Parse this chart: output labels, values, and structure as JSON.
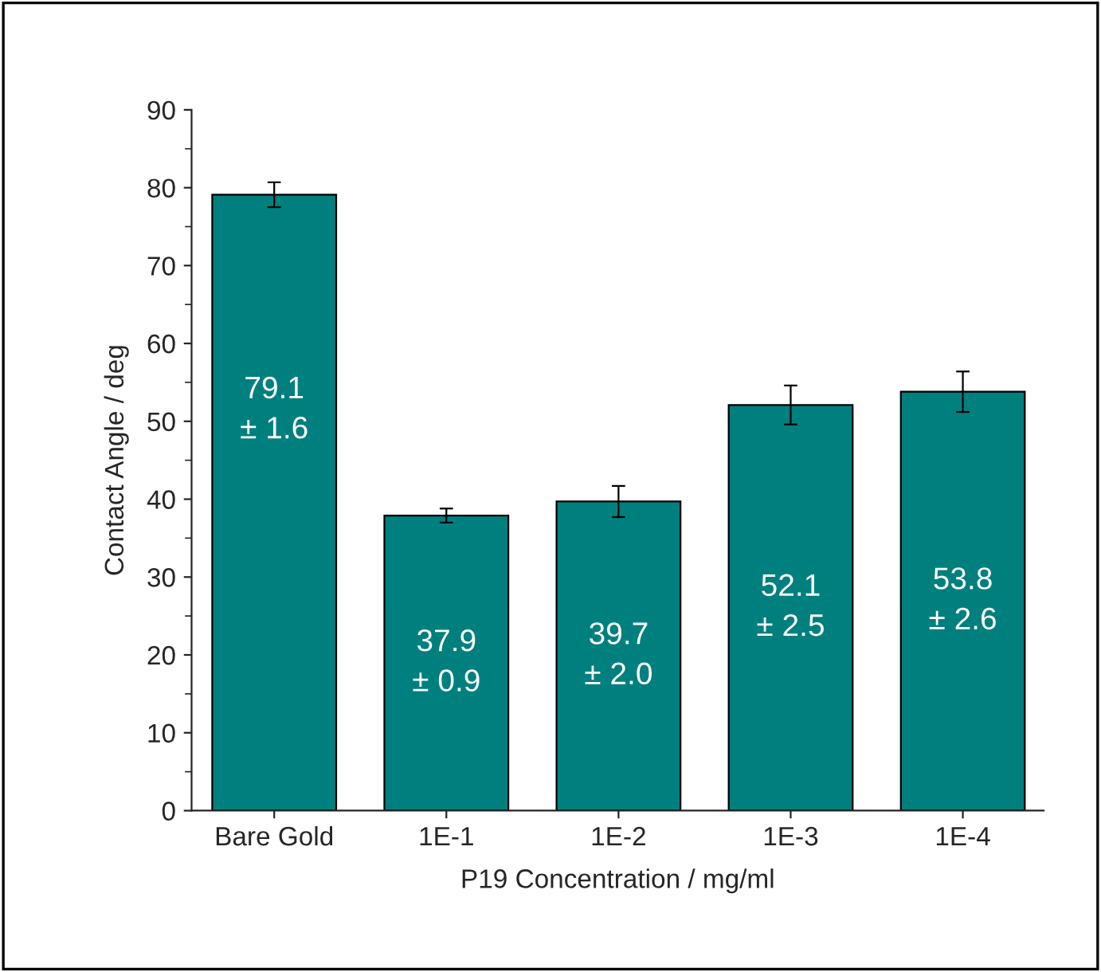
{
  "chart_data": {
    "type": "bar",
    "xlabel": "P19 Concentration / mg/ml",
    "ylabel": "Contact Angle / deg",
    "categories": [
      "Bare Gold",
      "1E-1",
      "1E-2",
      "1E-3",
      "1E-4"
    ],
    "values": [
      79.1,
      37.9,
      39.7,
      52.1,
      53.8
    ],
    "errors": [
      1.6,
      0.9,
      2.0,
      2.5,
      2.6
    ],
    "value_labels": [
      "79.1\n± 1.6",
      "37.9\n± 0.9",
      "39.7\n± 2.0",
      "52.1\n± 2.5",
      "53.8\n± 2.6"
    ],
    "color": "#007f7f",
    "ylim": [
      0,
      90
    ],
    "yticks": [
      0,
      10,
      20,
      30,
      40,
      50,
      60,
      70,
      80,
      90
    ],
    "grid": false,
    "legend": false
  }
}
